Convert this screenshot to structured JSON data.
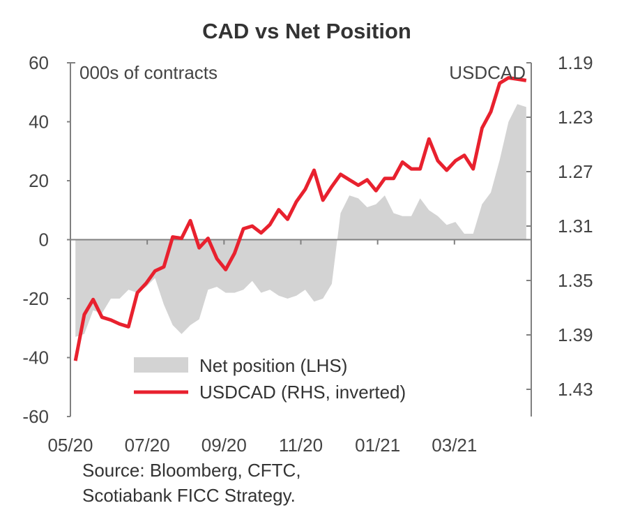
{
  "chart_data": {
    "type": "line",
    "title": "CAD vs Net Position",
    "left_axis_unit": "000s of contracts",
    "right_axis_unit": "USDCAD",
    "x_ticks": [
      "05/20",
      "07/20",
      "09/20",
      "11/20",
      "01/21",
      "03/21"
    ],
    "x_range": [
      "2020-05-05",
      "2021-04-27"
    ],
    "y_left": {
      "range": [
        -60,
        60
      ],
      "ticks": [
        "60",
        "40",
        "20",
        "0",
        "-20",
        "-40",
        "-60"
      ]
    },
    "y_right": {
      "range": [
        1.19,
        1.45
      ],
      "inverted": true,
      "ticks": [
        "1.19",
        "1.23",
        "1.27",
        "1.31",
        "1.35",
        "1.39",
        "1.43"
      ]
    },
    "grid": false,
    "legend_position": "bottom-center",
    "series": [
      {
        "name": "Net position (LHS)",
        "type": "area",
        "axis": "left",
        "color": "#d3d3d3",
        "x": [
          "2020-05-05",
          "2020-05-12",
          "2020-05-19",
          "2020-05-26",
          "2020-06-02",
          "2020-06-09",
          "2020-06-16",
          "2020-06-23",
          "2020-06-30",
          "2020-07-07",
          "2020-07-14",
          "2020-07-21",
          "2020-07-28",
          "2020-08-04",
          "2020-08-11",
          "2020-08-18",
          "2020-08-25",
          "2020-09-01",
          "2020-09-08",
          "2020-09-15",
          "2020-09-22",
          "2020-09-29",
          "2020-10-06",
          "2020-10-13",
          "2020-10-20",
          "2020-10-27",
          "2020-11-03",
          "2020-11-10",
          "2020-11-17",
          "2020-11-24",
          "2020-12-01",
          "2020-12-08",
          "2020-12-15",
          "2020-12-22",
          "2020-12-29",
          "2021-01-05",
          "2021-01-12",
          "2021-01-19",
          "2021-01-26",
          "2021-02-02",
          "2021-02-09",
          "2021-02-16",
          "2021-02-23",
          "2021-03-02",
          "2021-03-09",
          "2021-03-16",
          "2021-03-23",
          "2021-03-30",
          "2021-04-06",
          "2021-04-13",
          "2021-04-20",
          "2021-04-27"
        ],
        "values": [
          -33,
          -32,
          -24,
          -25,
          -20,
          -20,
          -17,
          -18,
          -16,
          -13,
          -22,
          -29,
          -32,
          -29,
          -27,
          -17,
          -16,
          -18,
          -18,
          -17,
          -14,
          -18,
          -17,
          -19,
          -20,
          -19,
          -17,
          -21,
          -20,
          -15,
          9,
          15,
          14,
          11,
          12,
          15,
          9,
          8,
          8,
          14,
          10,
          8,
          5,
          6,
          2,
          2,
          12,
          16,
          27,
          40,
          46,
          45
        ]
      },
      {
        "name": "USDCAD (RHS, inverted)",
        "type": "line",
        "axis": "right",
        "color": "#e8212e",
        "x": [
          "2020-05-05",
          "2020-05-12",
          "2020-05-19",
          "2020-05-26",
          "2020-06-02",
          "2020-06-09",
          "2020-06-16",
          "2020-06-23",
          "2020-06-30",
          "2020-07-07",
          "2020-07-14",
          "2020-07-21",
          "2020-07-28",
          "2020-08-04",
          "2020-08-11",
          "2020-08-18",
          "2020-08-25",
          "2020-09-01",
          "2020-09-08",
          "2020-09-15",
          "2020-09-22",
          "2020-09-29",
          "2020-10-06",
          "2020-10-13",
          "2020-10-20",
          "2020-10-27",
          "2020-11-03",
          "2020-11-10",
          "2020-11-17",
          "2020-11-24",
          "2020-12-01",
          "2020-12-08",
          "2020-12-15",
          "2020-12-22",
          "2020-12-29",
          "2021-01-05",
          "2021-01-12",
          "2021-01-19",
          "2021-01-26",
          "2021-02-02",
          "2021-02-09",
          "2021-02-16",
          "2021-02-23",
          "2021-03-02",
          "2021-03-09",
          "2021-03-16",
          "2021-03-23",
          "2021-03-30",
          "2021-04-06",
          "2021-04-13",
          "2021-04-20",
          "2021-04-27"
        ],
        "values": [
          1.409,
          1.375,
          1.364,
          1.377,
          1.379,
          1.382,
          1.384,
          1.359,
          1.352,
          1.343,
          1.34,
          1.318,
          1.319,
          1.306,
          1.326,
          1.319,
          1.334,
          1.342,
          1.33,
          1.312,
          1.31,
          1.315,
          1.309,
          1.298,
          1.305,
          1.292,
          1.283,
          1.269,
          1.291,
          1.281,
          1.272,
          1.276,
          1.28,
          1.276,
          1.284,
          1.275,
          1.275,
          1.263,
          1.268,
          1.268,
          1.246,
          1.262,
          1.269,
          1.262,
          1.258,
          1.268,
          1.238,
          1.226,
          1.205,
          1.201,
          1.202,
          1.203
        ]
      }
    ]
  },
  "source": {
    "line1": "Source: Bloomberg, CFTC,",
    "line2": "Scotiabank FICC  Strategy."
  }
}
